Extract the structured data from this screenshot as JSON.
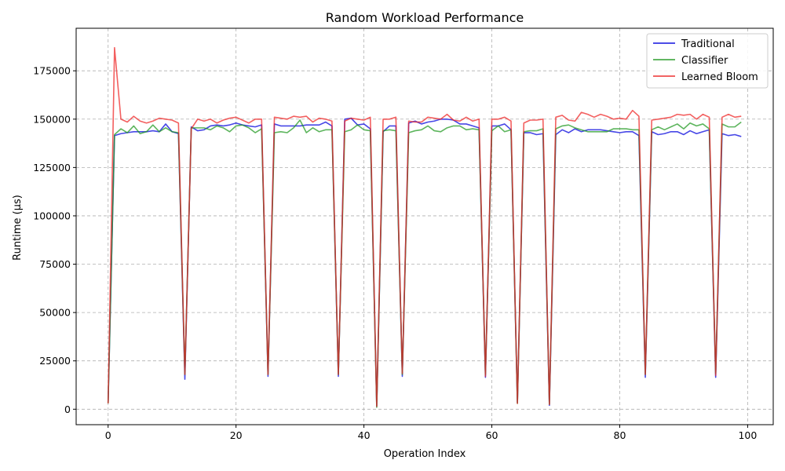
{
  "chart_data": {
    "type": "line",
    "title": "Random Workload Performance",
    "xlabel": "Operation Index",
    "ylabel": "Runtime (µs)",
    "xlim": [
      -5,
      104
    ],
    "ylim": [
      -8000,
      197000
    ],
    "xticks": [
      0,
      20,
      40,
      60,
      80,
      100
    ],
    "yticks": [
      0,
      25000,
      50000,
      75000,
      100000,
      125000,
      150000,
      175000
    ],
    "grid": true,
    "legend_position": "top-right",
    "x": [
      0,
      1,
      2,
      3,
      4,
      5,
      6,
      7,
      8,
      9,
      10,
      11,
      12,
      13,
      14,
      15,
      16,
      17,
      18,
      19,
      20,
      21,
      22,
      23,
      24,
      25,
      26,
      27,
      28,
      29,
      30,
      31,
      32,
      33,
      34,
      35,
      36,
      37,
      38,
      39,
      40,
      41,
      42,
      43,
      44,
      45,
      46,
      47,
      48,
      49,
      50,
      51,
      52,
      53,
      54,
      55,
      56,
      57,
      58,
      59,
      60,
      61,
      62,
      63,
      64,
      65,
      66,
      67,
      68,
      69,
      70,
      71,
      72,
      73,
      74,
      75,
      76,
      77,
      78,
      79,
      80,
      81,
      82,
      83,
      84,
      85,
      86,
      87,
      88,
      89,
      90,
      91,
      92,
      93,
      94,
      95,
      96,
      97,
      98,
      99
    ],
    "series": [
      {
        "name": "Traditional",
        "color": "#0000dd",
        "values": [
          3500,
          141500,
          142500,
          143000,
          143500,
          143500,
          143500,
          144000,
          143500,
          147500,
          143500,
          142500,
          15500,
          146000,
          144000,
          144500,
          146500,
          147000,
          146500,
          147000,
          148000,
          147000,
          146500,
          146000,
          147000,
          17000,
          147500,
          146500,
          146500,
          146500,
          146500,
          147000,
          147000,
          147000,
          148500,
          146500,
          17000,
          150000,
          150500,
          147000,
          147500,
          145000,
          1500,
          143500,
          146500,
          146500,
          17000,
          148000,
          149000,
          147500,
          148500,
          149000,
          150000,
          150000,
          149500,
          147500,
          147500,
          146500,
          145500,
          16500,
          146500,
          146500,
          147500,
          144500,
          3500,
          143000,
          143000,
          142000,
          142500,
          2000,
          142000,
          144500,
          143000,
          145000,
          143500,
          144500,
          144500,
          144500,
          144000,
          143500,
          143000,
          143500,
          143500,
          141500,
          16500,
          143500,
          142000,
          142500,
          143500,
          143500,
          142000,
          144000,
          142500,
          143500,
          144500,
          16500,
          142500,
          141500,
          142000,
          141000
        ]
      },
      {
        "name": "Classifier",
        "color": "#1f991f",
        "values": [
          3000,
          142000,
          145000,
          143000,
          146500,
          142500,
          143500,
          147000,
          143500,
          145500,
          143500,
          143000,
          18000,
          145500,
          145500,
          145500,
          144500,
          146500,
          145500,
          143500,
          146500,
          147000,
          145500,
          143000,
          145000,
          18000,
          143000,
          143500,
          143000,
          145500,
          149500,
          143000,
          145500,
          143500,
          144500,
          144500,
          18000,
          143500,
          144500,
          147000,
          144500,
          144000,
          1000,
          144000,
          144500,
          144000,
          18000,
          143000,
          144000,
          144500,
          146500,
          144000,
          143500,
          145500,
          146500,
          146500,
          144500,
          145000,
          144500,
          18000,
          144000,
          146500,
          143500,
          144500,
          3000,
          143500,
          144000,
          144000,
          145000,
          2500,
          145000,
          146500,
          147000,
          145500,
          144500,
          143500,
          143500,
          143500,
          143500,
          145000,
          145000,
          145000,
          144500,
          144500,
          18000,
          144500,
          146000,
          144500,
          146000,
          147500,
          145000,
          148000,
          146500,
          147500,
          145000,
          18500,
          147500,
          146000,
          146000,
          148500
        ]
      },
      {
        "name": "Learned Bloom",
        "color": "#ee2222",
        "values": [
          3000,
          187000,
          150000,
          148500,
          151500,
          149000,
          148000,
          149000,
          150500,
          150000,
          149500,
          148000,
          18000,
          145000,
          150000,
          149000,
          150000,
          148000,
          149500,
          150500,
          151000,
          149500,
          148000,
          150000,
          150000,
          18000,
          151000,
          150500,
          150000,
          151500,
          151000,
          151500,
          148500,
          150500,
          150000,
          149000,
          18000,
          149000,
          150500,
          150000,
          149500,
          151000,
          1500,
          150000,
          150000,
          151000,
          18500,
          149000,
          148500,
          148500,
          151000,
          150500,
          150000,
          152500,
          149500,
          149000,
          151000,
          149000,
          150000,
          17000,
          150000,
          150000,
          151000,
          149000,
          3000,
          148000,
          149500,
          149500,
          150000,
          2500,
          151000,
          152000,
          149500,
          149000,
          153500,
          152500,
          151000,
          152500,
          151500,
          150000,
          150500,
          150000,
          154500,
          151500,
          18000,
          149500,
          150000,
          150500,
          151000,
          152500,
          152000,
          152500,
          150000,
          152500,
          151000,
          17500,
          151000,
          152500,
          151000,
          151500
        ]
      }
    ]
  }
}
